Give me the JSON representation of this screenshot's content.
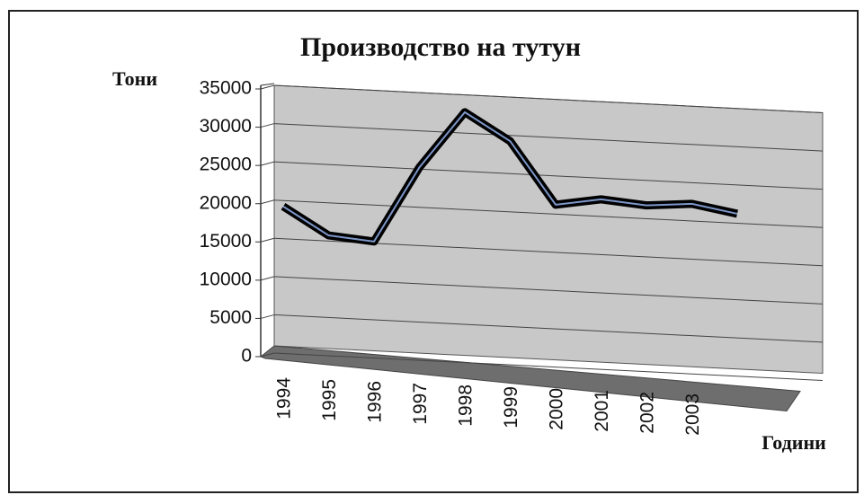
{
  "chart_data": {
    "type": "line",
    "title": "Производство на тутун",
    "y_label": "Тони",
    "x_label": "Години",
    "categories": [
      "1994",
      "1995",
      "1996",
      "1997",
      "1998",
      "1999",
      "2000",
      "2001",
      "2002",
      "2003",
      null
    ],
    "series": [
      {
        "name": "Производство",
        "color": "#000000",
        "values": [
          19000,
          15500,
          15000,
          25000,
          32500,
          29000,
          21000,
          22000,
          21500,
          22000,
          21000
        ]
      }
    ],
    "ylim": [
      0,
      35000
    ],
    "yticks": [
      0,
      5000,
      10000,
      15000,
      20000,
      25000,
      30000,
      35000
    ],
    "grid": true
  }
}
